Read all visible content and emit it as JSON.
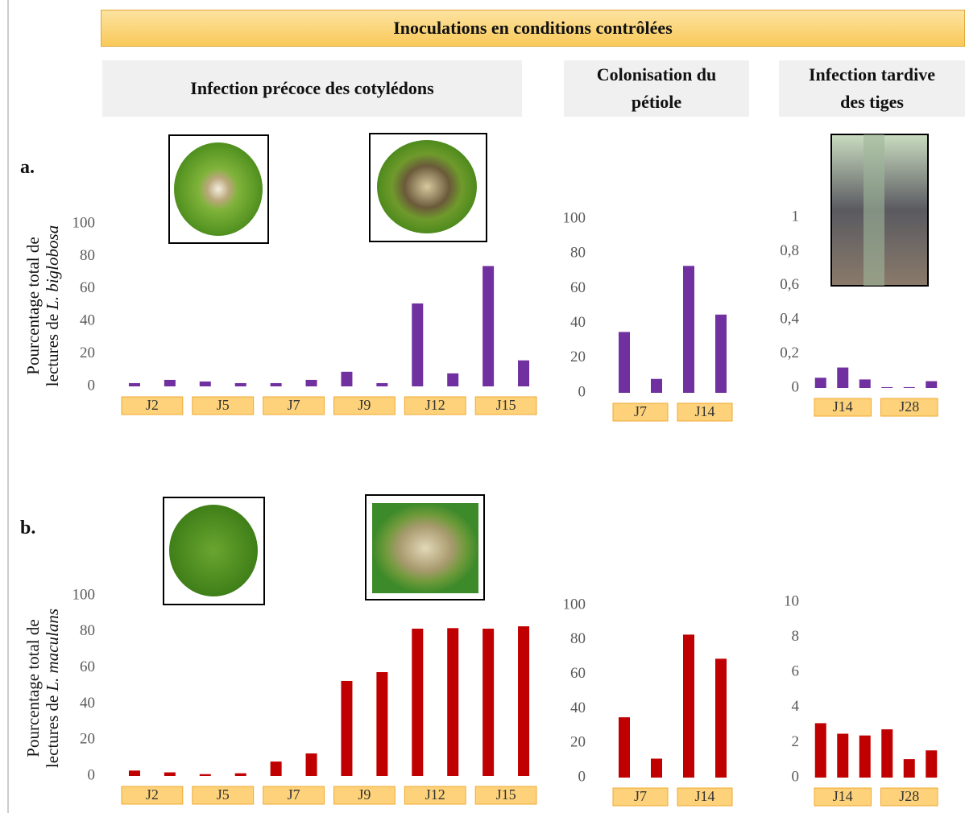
{
  "header": "Inoculations en conditions contrôlées",
  "sections": [
    "Infection précoce des cotylédons",
    "Colonisation du pétiole",
    "Infection tardive des tiges"
  ],
  "rows": [
    {
      "label": "a.",
      "ylabel": [
        "Pourcentage total de",
        "lectures de",
        "L. biglobosa"
      ]
    },
    {
      "label": "b.",
      "ylabel": [
        "Pourcentage total de",
        "lectures de",
        "L. maculans"
      ]
    }
  ],
  "chart_data": [
    {
      "type": "bar",
      "categories": [
        "J2",
        "J5",
        "J7",
        "J9",
        "J12",
        "J15"
      ],
      "series": [
        {
          "color": "#7030a0",
          "values": [
            2,
            3,
            2,
            9,
            51,
            74
          ]
        },
        {
          "color": "#7030a0",
          "values": [
            4,
            2,
            4,
            2,
            8,
            16
          ]
        }
      ],
      "ylim": [
        0,
        100
      ],
      "yticks": [
        0,
        20,
        40,
        60,
        80,
        100
      ]
    },
    {
      "type": "bar",
      "categories": [
        "J7",
        "J14"
      ],
      "series": [
        {
          "color": "#7030a0",
          "values": [
            35,
            73
          ]
        },
        {
          "color": "#7030a0",
          "values": [
            8,
            45
          ]
        }
      ],
      "ylim": [
        0,
        100
      ],
      "yticks": [
        0,
        20,
        40,
        60,
        80,
        100
      ]
    },
    {
      "type": "bar",
      "categories": [
        "J14",
        "J28"
      ],
      "series": [
        {
          "color": "#7030a0",
          "values": [
            0.06,
            0.005
          ]
        },
        {
          "color": "#7030a0",
          "values": [
            0.12,
            0.005
          ]
        },
        {
          "color": "#7030a0",
          "values": [
            0.05,
            0.04
          ]
        }
      ],
      "ylim": [
        0,
        1
      ],
      "yticks": [
        0,
        {
          "value": 0.2,
          "label": "0,2"
        },
        {
          "value": 0.4,
          "label": "0,4"
        },
        {
          "value": 0.6,
          "label": "0,6"
        },
        {
          "value": 0.8,
          "label": "0,8"
        },
        1
      ]
    },
    {
      "type": "bar",
      "categories": [
        "J2",
        "J5",
        "J7",
        "J9",
        "J12",
        "J15"
      ],
      "series": [
        {
          "color": "#c00000",
          "values": [
            3,
            1,
            8,
            52.7,
            81.7,
            81.7
          ]
        },
        {
          "color": "#c00000",
          "values": [
            2,
            1.5,
            12.5,
            57.6,
            82,
            83
          ]
        }
      ],
      "ylim": [
        0,
        100
      ],
      "yticks": [
        0,
        20,
        40,
        60,
        80,
        100
      ]
    },
    {
      "type": "bar",
      "categories": [
        "J7",
        "J14"
      ],
      "series": [
        {
          "color": "#c00000",
          "values": [
            35,
            83
          ]
        },
        {
          "color": "#c00000",
          "values": [
            11,
            69
          ]
        }
      ],
      "ylim": [
        0,
        100
      ],
      "yticks": [
        0,
        20,
        40,
        60,
        80,
        100
      ]
    },
    {
      "type": "bar",
      "categories": [
        "J14",
        "J28"
      ],
      "series": [
        {
          "color": "#c00000",
          "values": [
            3.1,
            2.75
          ]
        },
        {
          "color": "#c00000",
          "values": [
            2.5,
            1.05
          ]
        },
        {
          "color": "#c00000",
          "values": [
            2.4,
            1.55
          ]
        }
      ],
      "ylim": [
        0,
        10
      ],
      "yticks": [
        0,
        2,
        4,
        6,
        8,
        10
      ]
    }
  ]
}
